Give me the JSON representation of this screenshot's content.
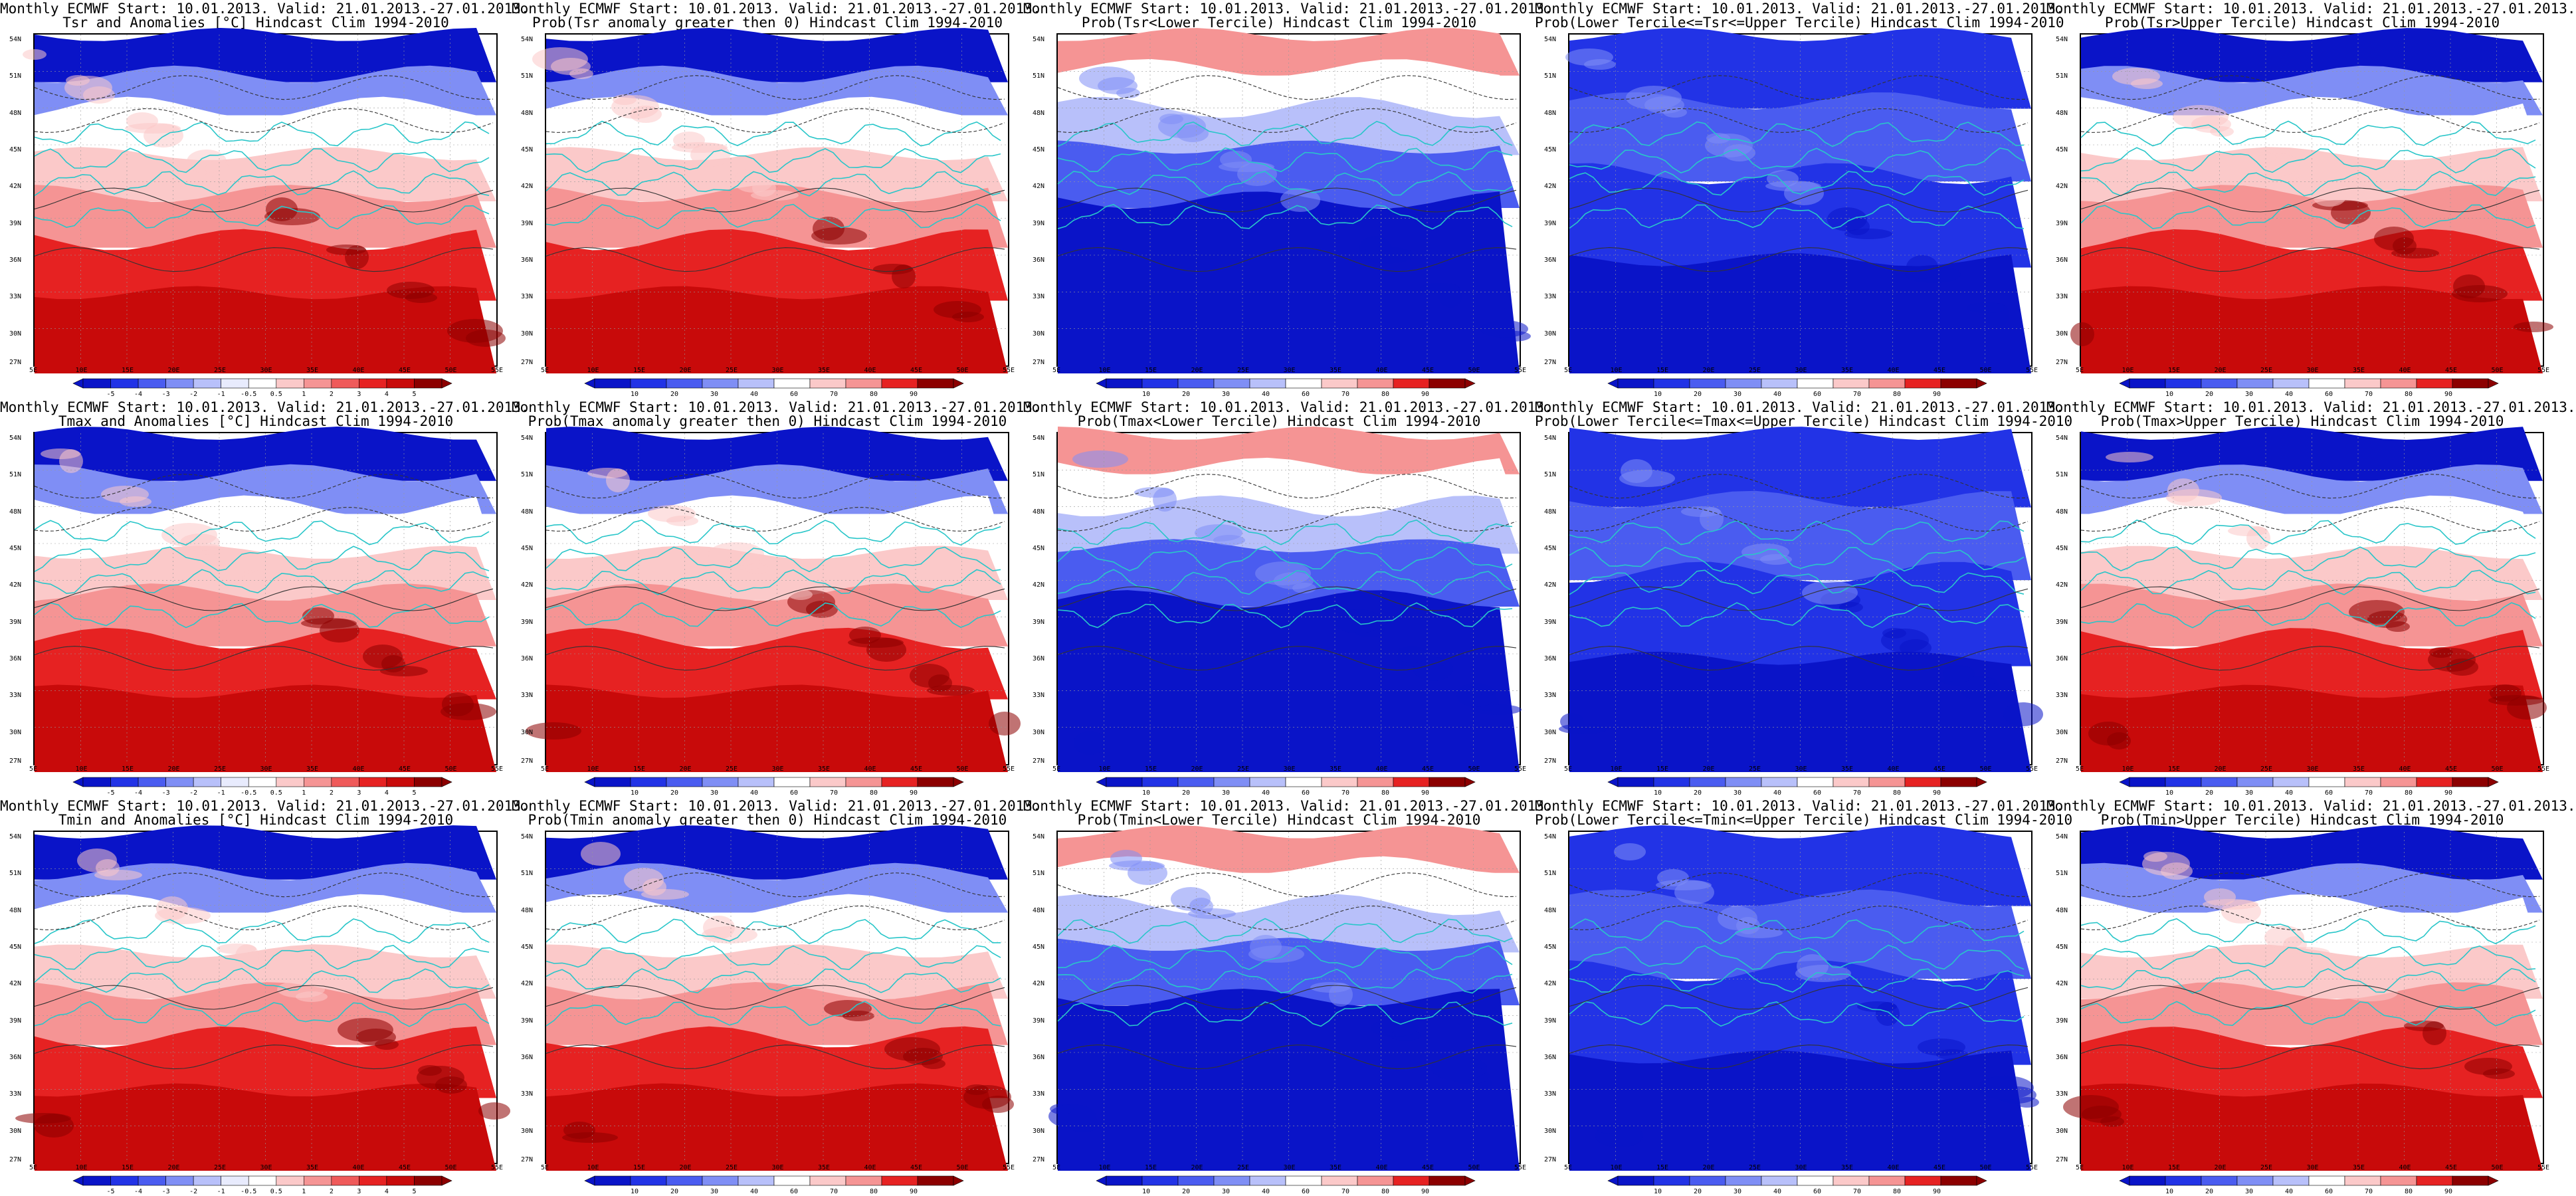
{
  "colors": {
    "blue_scale": [
      "#0a14c8",
      "#2233e6",
      "#4a5cf0",
      "#7f8ef5",
      "#b8c0fa",
      "#ffffff"
    ],
    "red_scale": [
      "#ffffff",
      "#fbc9c9",
      "#f59494",
      "#ef5a5a",
      "#e62222",
      "#c80a0a",
      "#8c0000"
    ],
    "coast": "#29c6c9",
    "contour": "#333333"
  },
  "latitude_labels": [
    "54N",
    "51N",
    "48N",
    "45N",
    "42N",
    "39N",
    "36N",
    "33N",
    "30N",
    "27N"
  ],
  "longitude_labels": [
    "5E",
    "10E",
    "15E",
    "20E",
    "25E",
    "30E",
    "35E",
    "40E",
    "45E",
    "50E",
    "55E"
  ],
  "legends": {
    "anomaly": [
      "-5",
      "-4",
      "-3",
      "-2",
      "-1",
      "-0.5",
      "0.5",
      "1",
      "2",
      "3",
      "4",
      "5"
    ],
    "prob": [
      "10",
      "20",
      "30",
      "40",
      "60",
      "70",
      "80",
      "90"
    ]
  },
  "panels": [
    {
      "line1": "Monthly ECMWF Start: 10.01.2013. Valid: 21.01.2013.-27.01.2013.",
      "line2": "Tsr and Anomalies [°C] Hindcast Clim 1994-2010",
      "legend": "anomaly",
      "scheme": "warm"
    },
    {
      "line1": "Monthly ECMWF Start: 10.01.2013. Valid: 21.01.2013.-27.01.2013.",
      "line2": "Prob(Tsr anomaly greater then 0) Hindcast Clim 1994-2010",
      "legend": "prob",
      "scheme": "warm"
    },
    {
      "line1": "Monthly ECMWF Start: 10.01.2013. Valid: 21.01.2013.-27.01.2013.",
      "line2": "Prob(Tsr<Lower Tercile) Hindcast Clim 1994-2010",
      "legend": "prob",
      "scheme": "coldlow"
    },
    {
      "line1": "Monthly ECMWF Start: 10.01.2013. Valid: 21.01.2013.-27.01.2013.",
      "line2": "Prob(Lower Tercile<=Tsr<=Upper Tercile) Hindcast Clim 1994-2010",
      "legend": "prob",
      "scheme": "middle"
    },
    {
      "line1": "Monthly ECMWF Start: 10.01.2013. Valid: 21.01.2013.-27.01.2013.",
      "line2": "Prob(Tsr>Upper Tercile) Hindcast Clim 1994-2010",
      "legend": "prob",
      "scheme": "warm"
    },
    {
      "line1": "Monthly ECMWF Start: 10.01.2013. Valid: 21.01.2013.-27.01.2013.",
      "line2": "Tmax and Anomalies [°C] Hindcast Clim 1994-2010",
      "legend": "anomaly",
      "scheme": "warm"
    },
    {
      "line1": "Monthly ECMWF Start: 10.01.2013. Valid: 21.01.2013.-27.01.2013.",
      "line2": "Prob(Tmax anomaly greater then 0) Hindcast Clim 1994-2010",
      "legend": "prob",
      "scheme": "warm"
    },
    {
      "line1": "Monthly ECMWF Start: 10.01.2013. Valid: 21.01.2013.-27.01.2013.",
      "line2": "Prob(Tmax<Lower Tercile) Hindcast Clim 1994-2010",
      "legend": "prob",
      "scheme": "coldlow"
    },
    {
      "line1": "Monthly ECMWF Start: 10.01.2013. Valid: 21.01.2013.-27.01.2013.",
      "line2": "Prob(Lower Tercile<=Tmax<=Upper Tercile) Hindcast Clim 1994-2010",
      "legend": "prob",
      "scheme": "middle"
    },
    {
      "line1": "Monthly ECMWF Start: 10.01.2013. Valid: 21.01.2013.-27.01.2013.",
      "line2": "Prob(Tmax>Upper Tercile) Hindcast Clim 1994-2010",
      "legend": "prob",
      "scheme": "warm"
    },
    {
      "line1": "Monthly ECMWF Start: 10.01.2013. Valid: 21.01.2013.-27.01.2013.",
      "line2": "Tmin and Anomalies [°C] Hindcast Clim 1994-2010",
      "legend": "anomaly",
      "scheme": "warm"
    },
    {
      "line1": "Monthly ECMWF Start: 10.01.2013. Valid: 21.01.2013.-27.01.2013.",
      "line2": "Prob(Tmin anomaly greater then 0) Hindcast Clim 1994-2010",
      "legend": "prob",
      "scheme": "warm"
    },
    {
      "line1": "Monthly ECMWF Start: 10.01.2013. Valid: 21.01.2013.-27.01.2013.",
      "line2": "Prob(Tmin<Lower Tercile) Hindcast Clim 1994-2010",
      "legend": "prob",
      "scheme": "coldlow"
    },
    {
      "line1": "Monthly ECMWF Start: 10.01.2013. Valid: 21.01.2013.-27.01.2013.",
      "line2": "Prob(Lower Tercile<=Tmin<=Upper Tercile) Hindcast Clim 1994-2010",
      "legend": "prob",
      "scheme": "middle"
    },
    {
      "line1": "Monthly ECMWF Start: 10.01.2013. Valid: 21.01.2013.-27.01.2013.",
      "line2": "Prob(Tmin>Upper Tercile) Hindcast Clim 1994-2010",
      "legend": "prob",
      "scheme": "warm"
    }
  ]
}
